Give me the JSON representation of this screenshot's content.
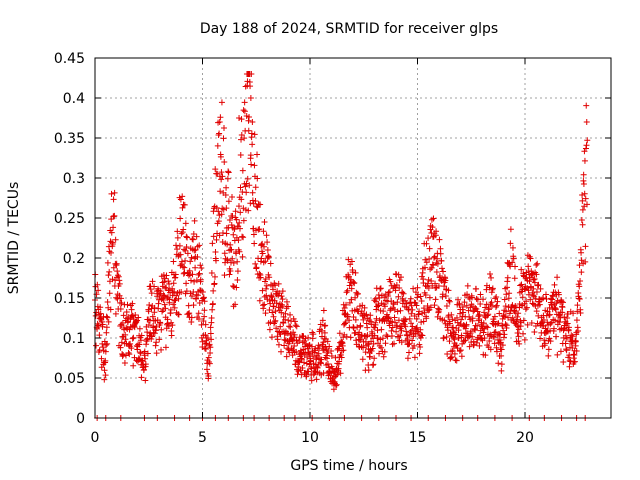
{
  "chart_data": {
    "type": "scatter",
    "title": "Day 188 of 2024, SRMTID for receiver glps",
    "xlabel": "GPS time / hours",
    "ylabel": "SRMTID / TECUs",
    "xlim": [
      0,
      24
    ],
    "ylim": [
      0,
      0.45
    ],
    "xticks": [
      0,
      5,
      10,
      15,
      20
    ],
    "yticks": [
      0,
      0.05,
      0.1,
      0.15,
      0.2,
      0.25,
      0.3,
      0.35,
      0.4,
      0.45
    ],
    "xtick_labels": [
      "0",
      "5",
      "10",
      "15",
      "20"
    ],
    "ytick_labels": [
      "0",
      "0.05",
      "0.1",
      "0.15",
      "0.2",
      "0.25",
      "0.3",
      "0.35",
      "0.4",
      "0.45"
    ],
    "grid": true,
    "marker": "+",
    "color": "#e00000",
    "series": [
      {
        "name": "SRMTID",
        "profile": [
          [
            0.0,
            0.14
          ],
          [
            0.2,
            0.12
          ],
          [
            0.4,
            0.09
          ],
          [
            0.5,
            0.07
          ],
          [
            0.6,
            0.16
          ],
          [
            0.8,
            0.22
          ],
          [
            0.9,
            0.24
          ],
          [
            1.0,
            0.17
          ],
          [
            1.2,
            0.12
          ],
          [
            1.5,
            0.11
          ],
          [
            2.0,
            0.1
          ],
          [
            2.3,
            0.06
          ],
          [
            2.5,
            0.12
          ],
          [
            3.0,
            0.13
          ],
          [
            3.5,
            0.14
          ],
          [
            3.8,
            0.18
          ],
          [
            4.0,
            0.22
          ],
          [
            4.3,
            0.19
          ],
          [
            4.8,
            0.18
          ],
          [
            5.0,
            0.12
          ],
          [
            5.3,
            0.08
          ],
          [
            5.5,
            0.2
          ],
          [
            5.8,
            0.33
          ],
          [
            6.1,
            0.25
          ],
          [
            6.5,
            0.2
          ],
          [
            6.8,
            0.28
          ],
          [
            7.0,
            0.33
          ],
          [
            7.2,
            0.39
          ],
          [
            7.4,
            0.3
          ],
          [
            7.6,
            0.22
          ],
          [
            8.0,
            0.17
          ],
          [
            8.5,
            0.13
          ],
          [
            9.0,
            0.11
          ],
          [
            9.5,
            0.08
          ],
          [
            10.0,
            0.08
          ],
          [
            10.3,
            0.07
          ],
          [
            10.6,
            0.1
          ],
          [
            11.0,
            0.06
          ],
          [
            11.2,
            0.05
          ],
          [
            11.5,
            0.1
          ],
          [
            11.8,
            0.15
          ],
          [
            12.2,
            0.13
          ],
          [
            12.7,
            0.09
          ],
          [
            13.0,
            0.11
          ],
          [
            13.5,
            0.13
          ],
          [
            14.0,
            0.14
          ],
          [
            14.5,
            0.12
          ],
          [
            15.0,
            0.12
          ],
          [
            15.4,
            0.17
          ],
          [
            15.7,
            0.21
          ],
          [
            16.0,
            0.18
          ],
          [
            16.3,
            0.14
          ],
          [
            16.6,
            0.1
          ],
          [
            17.0,
            0.12
          ],
          [
            17.5,
            0.13
          ],
          [
            18.0,
            0.11
          ],
          [
            18.5,
            0.14
          ],
          [
            18.9,
            0.09
          ],
          [
            19.3,
            0.18
          ],
          [
            19.6,
            0.13
          ],
          [
            20.0,
            0.15
          ],
          [
            20.3,
            0.17
          ],
          [
            20.6,
            0.14
          ],
          [
            21.0,
            0.11
          ],
          [
            21.5,
            0.13
          ],
          [
            22.0,
            0.1
          ],
          [
            22.4,
            0.09
          ],
          [
            22.6,
            0.2
          ],
          [
            22.8,
            0.29
          ],
          [
            22.9,
            0.31
          ]
        ]
      }
    ],
    "peak_max": 0.43,
    "zero_points_x": [
      0.1,
      0.5,
      1.2,
      2.3,
      2.9,
      3.7,
      4.4,
      5.0,
      5.6,
      6.2,
      6.9,
      7.4,
      8.1,
      8.8,
      9.3,
      10.1,
      10.9,
      11.6,
      12.4,
      13.2,
      14.0,
      14.7,
      15.5,
      16.3,
      17.1,
      17.8,
      18.6,
      19.4,
      20.2,
      20.9,
      21.7,
      22.4,
      22.8
    ]
  }
}
